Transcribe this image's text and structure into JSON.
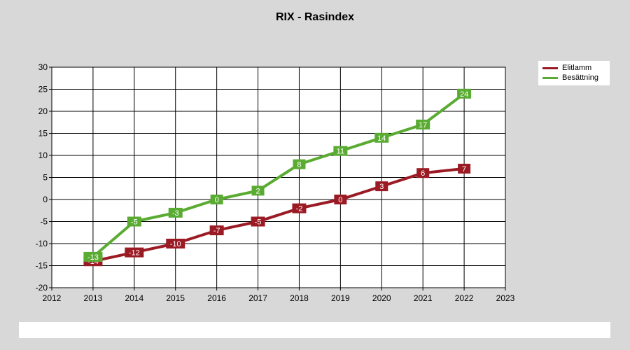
{
  "chart_data": {
    "type": "line",
    "title": "RIX - Rasindex",
    "x": [
      2013,
      2014,
      2015,
      2016,
      2017,
      2018,
      2019,
      2020,
      2021,
      2022
    ],
    "xlim": [
      2012,
      2023
    ],
    "ylim": [
      -20,
      30
    ],
    "x_ticks": [
      "2012",
      "2013",
      "2014",
      "2015",
      "2016",
      "2017",
      "2018",
      "2019",
      "2020",
      "2021",
      "2022",
      "2023"
    ],
    "y_ticks": [
      "30",
      "25",
      "20",
      "15",
      "10",
      "5",
      "0",
      "-5",
      "-10",
      "-15",
      "-20"
    ],
    "grid": true,
    "legend_position": "top-right",
    "series": [
      {
        "name": "Elitlamm",
        "color": "#9b1b25",
        "values": [
          -14,
          -12,
          -10,
          -7,
          -5,
          -2,
          0,
          3,
          6,
          7
        ],
        "labels": [
          "-14",
          "-12",
          "-10",
          "-7",
          "-5",
          "-2",
          "0",
          "3",
          "6",
          "7"
        ]
      },
      {
        "name": "Besättning",
        "color": "#5aab32",
        "values": [
          -13,
          -5,
          -3,
          0,
          2,
          8,
          11,
          14,
          17,
          24
        ],
        "labels": [
          "-13",
          "-5",
          "-3",
          "0",
          "2",
          "8",
          "11",
          "14",
          "17",
          "24"
        ]
      }
    ]
  }
}
